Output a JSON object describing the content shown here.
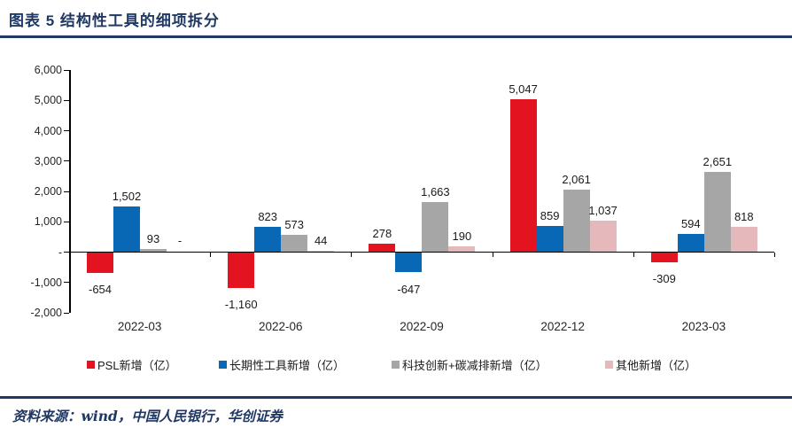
{
  "header": {
    "title": "图表 5  结构性工具的细项拆分"
  },
  "footer": {
    "source": "资料来源：wind，中国人民银行，华创证券"
  },
  "colors": {
    "accent_navy": "#1F3864",
    "axis_black": "#000000",
    "series_red": "#E31420",
    "series_blue": "#0868B6",
    "series_gray": "#A6A6A6",
    "series_pink": "#E5B8BC"
  },
  "chart_data": {
    "type": "bar",
    "title": "结构性工具的细项拆分",
    "categories": [
      "2022-03",
      "2022-06",
      "2022-09",
      "2022-12",
      "2023-03"
    ],
    "series": [
      {
        "name": "PSL新增（亿）",
        "color": "#E31420",
        "values": [
          -654,
          -1160,
          278,
          5047,
          -309
        ],
        "labels": [
          "-654",
          "-1,160",
          "278",
          "5,047",
          "-309"
        ]
      },
      {
        "name": "长期性工具新增（亿）",
        "color": "#0868B6",
        "values": [
          1502,
          823,
          -647,
          859,
          594
        ],
        "labels": [
          "1,502",
          "823",
          "-647",
          "859",
          "594"
        ]
      },
      {
        "name": "科技创新+碳减排新增（亿）",
        "color": "#A6A6A6",
        "values": [
          93,
          573,
          1663,
          2061,
          2651
        ],
        "labels": [
          "93",
          "573",
          "1,663",
          "2,061",
          "2,651"
        ]
      },
      {
        "name": "其他新增（亿）",
        "color": "#E5B8BC",
        "values": [
          0,
          44,
          190,
          1037,
          818
        ],
        "labels": [
          "-",
          "44",
          "190",
          "1,037",
          "818"
        ]
      }
    ],
    "xlabel": "",
    "ylabel": "",
    "ylim": [
      -2000,
      6000
    ],
    "yticks": [
      {
        "v": 6000,
        "label": "6,000"
      },
      {
        "v": 5000,
        "label": "5,000"
      },
      {
        "v": 4000,
        "label": "4,000"
      },
      {
        "v": 3000,
        "label": "3,000"
      },
      {
        "v": 2000,
        "label": "2,000"
      },
      {
        "v": 1000,
        "label": "1,000"
      },
      {
        "v": 0,
        "label": "-"
      },
      {
        "v": -1000,
        "label": "-1,000"
      },
      {
        "v": -2000,
        "label": "-2,000"
      }
    ],
    "grid": false,
    "legend_position": "bottom"
  }
}
